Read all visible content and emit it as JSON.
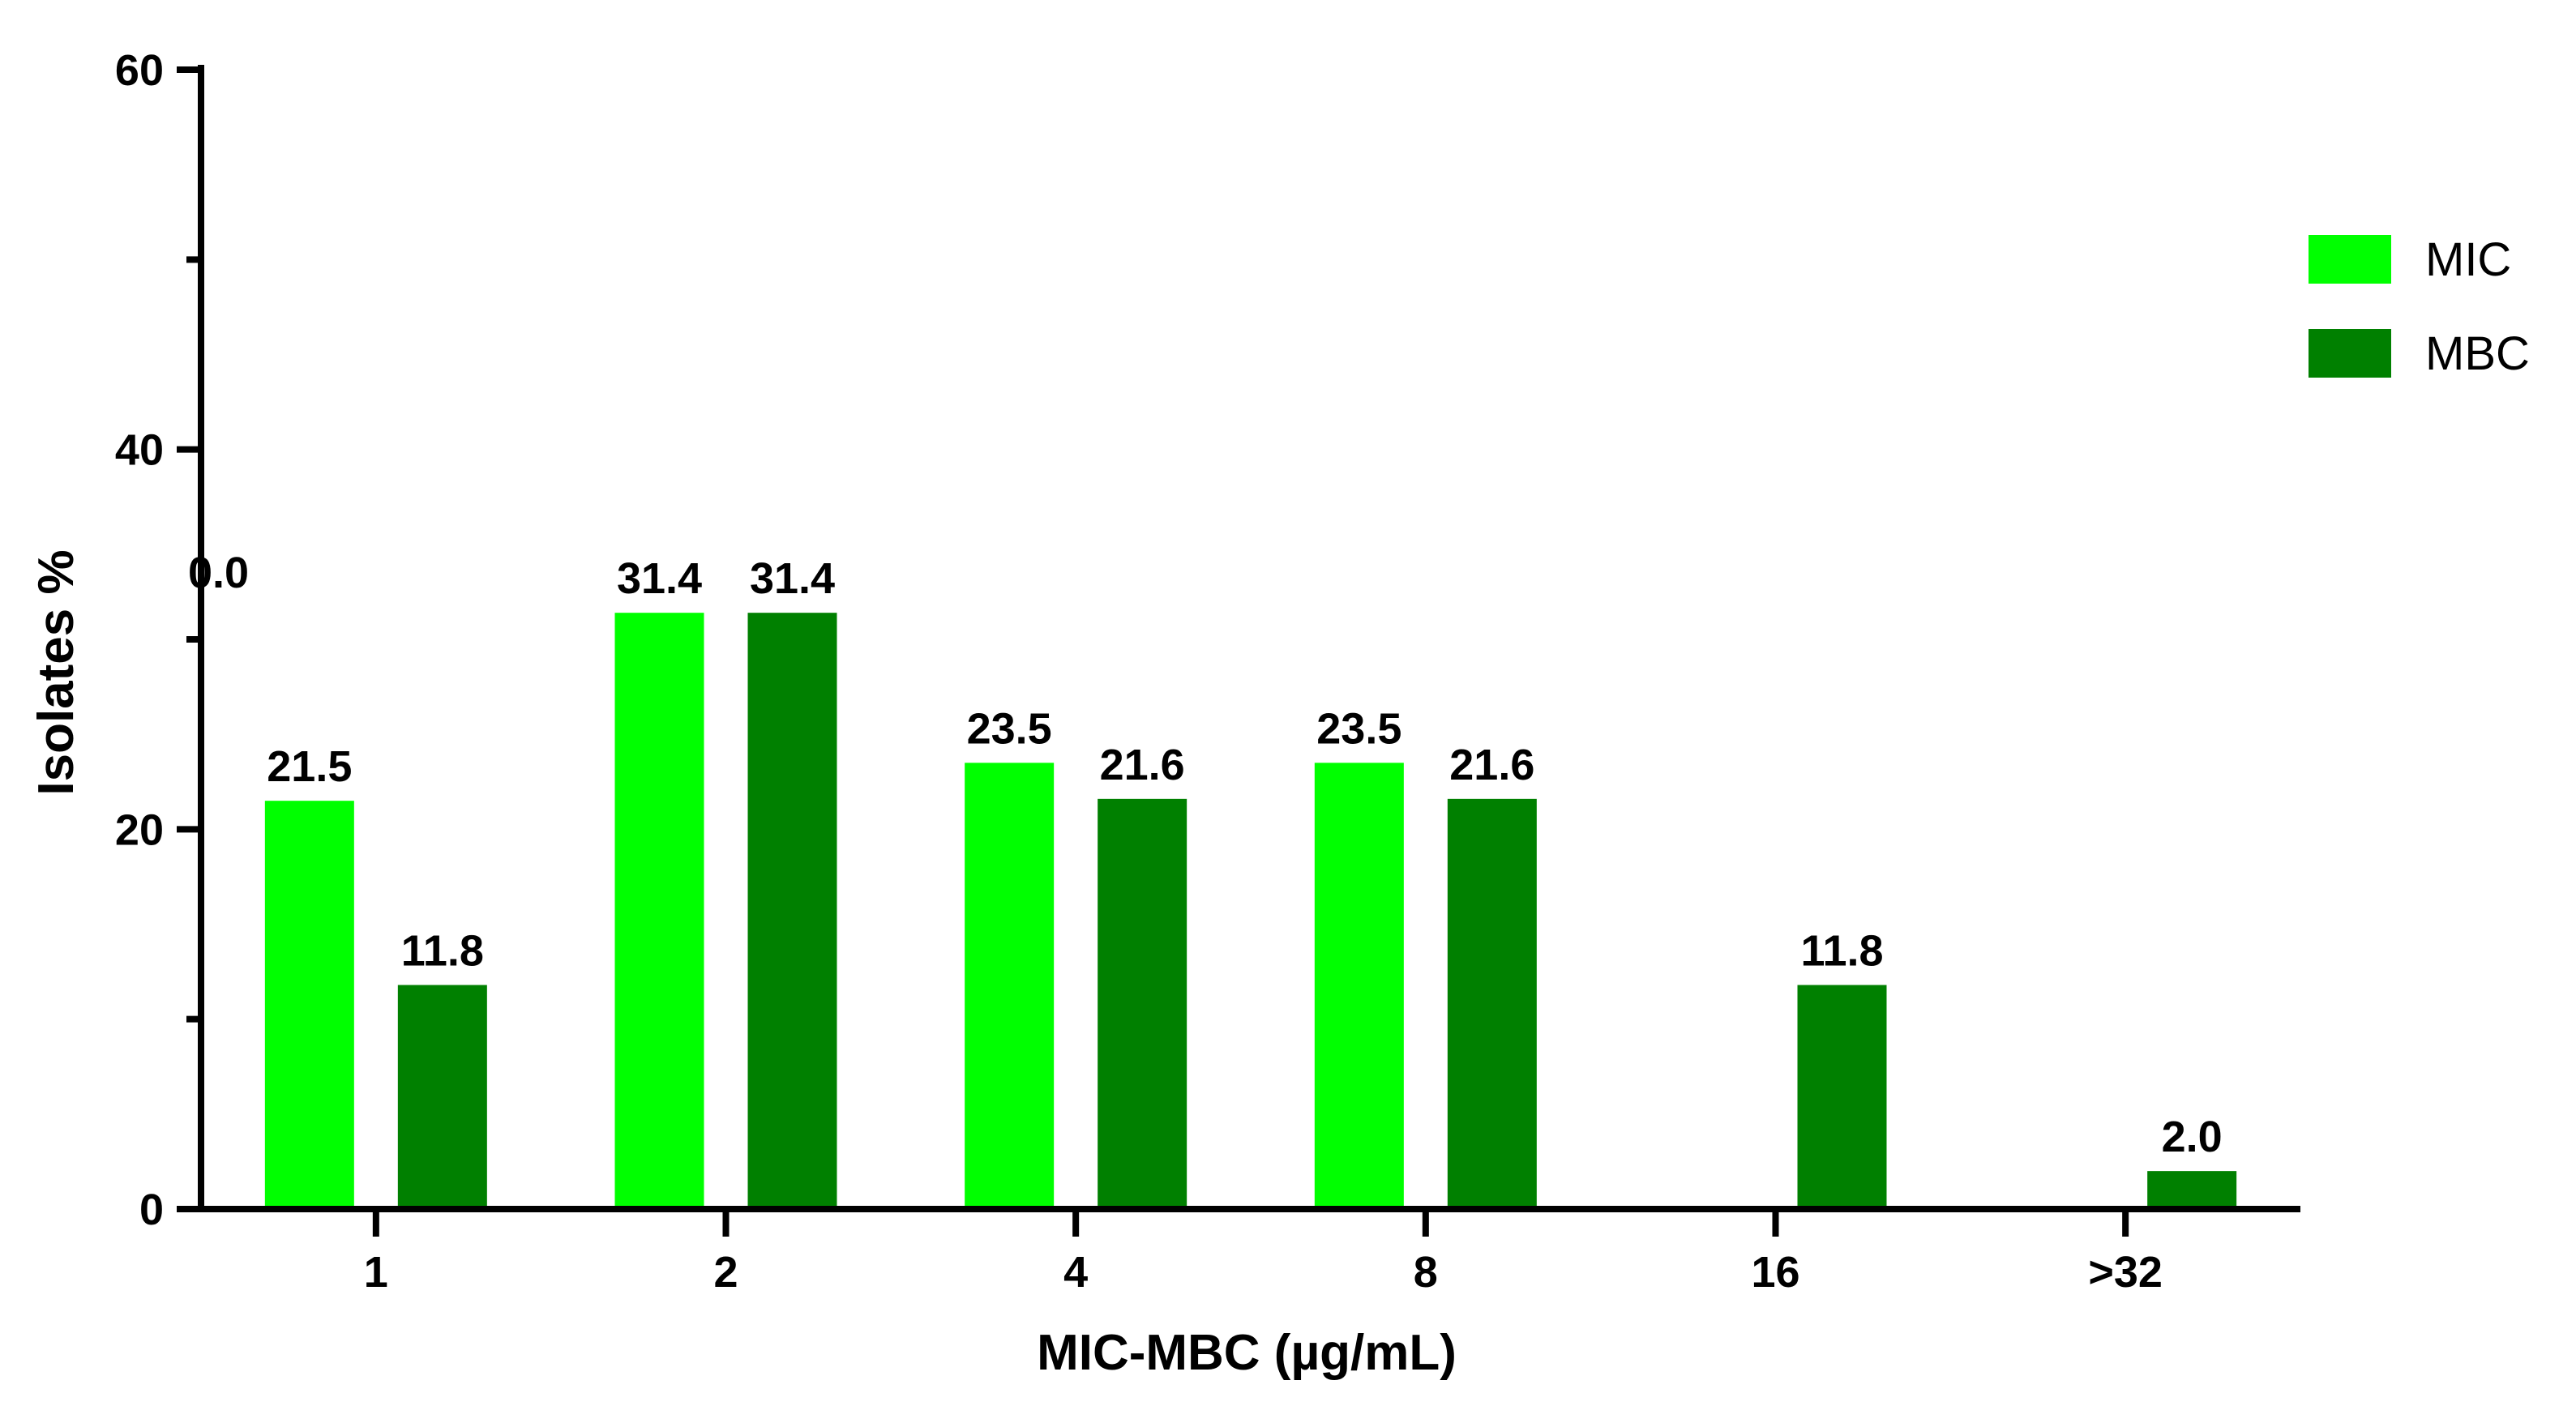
{
  "chart_data": {
    "type": "bar",
    "xlabel": "MIC-MBC (µg/mL)",
    "ylabel": "Isolates %",
    "ylim": [
      0,
      60
    ],
    "yticks": [
      0,
      20,
      40,
      60
    ],
    "categories": [
      "1",
      "2",
      "4",
      "8",
      "16",
      ">32"
    ],
    "series": [
      {
        "name": "MIC",
        "color": "#00ff00",
        "values": [
          21.5,
          31.4,
          23.5,
          23.5,
          null,
          null
        ],
        "labels": [
          "21.5",
          "31.4",
          "23.5",
          "23.5",
          null,
          null
        ]
      },
      {
        "name": "MBC",
        "color": "#008000",
        "values": [
          11.8,
          31.4,
          21.6,
          21.6,
          11.8,
          2.0
        ],
        "labels": [
          "11.8",
          "31.4",
          "21.6",
          "21.6",
          "11.8",
          "2.0"
        ]
      }
    ],
    "annotations": [
      "0.0"
    ],
    "legend": "right",
    "grid": false
  }
}
